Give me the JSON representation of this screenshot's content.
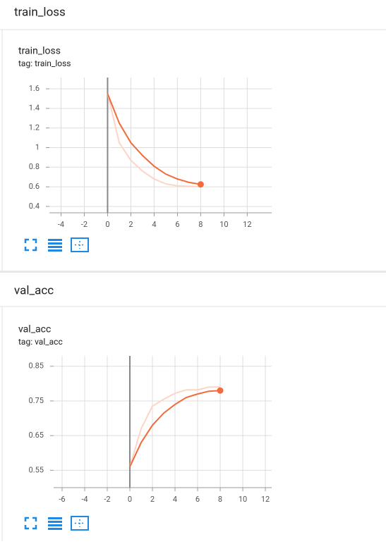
{
  "chart_data": [
    {
      "type": "line",
      "section": "train_loss",
      "title": "train_loss",
      "subtitle": "tag: train_loss",
      "x": [
        0,
        1,
        2,
        3,
        4,
        5,
        6,
        7,
        8
      ],
      "series": [
        {
          "color": "#fdd5c6",
          "values": [
            1.55,
            1.05,
            0.87,
            0.76,
            0.68,
            0.63,
            0.61,
            0.605,
            0.6
          ]
        },
        {
          "color": "#f26b3a",
          "values": [
            1.55,
            1.25,
            1.05,
            0.92,
            0.81,
            0.73,
            0.68,
            0.645,
            0.625
          ]
        }
      ],
      "xlim": [
        -5,
        14.1
      ],
      "xticks": [
        -4,
        -2,
        0,
        2,
        4,
        6,
        8,
        10,
        12
      ],
      "ylim": [
        0.335,
        1.715
      ],
      "yticks": [
        0.4,
        0.6,
        0.8,
        1,
        1.2,
        1.4,
        1.6
      ],
      "grid": true
    },
    {
      "type": "line",
      "section": "val_acc",
      "title": "val_acc",
      "subtitle": "tag: val_acc",
      "x": [
        0,
        1,
        2,
        3,
        4,
        5,
        6,
        7,
        8
      ],
      "series": [
        {
          "color": "#fdd5c6",
          "values": [
            0.56,
            0.67,
            0.735,
            0.755,
            0.772,
            0.782,
            0.782,
            0.79,
            0.79
          ]
        },
        {
          "color": "#f26b3a",
          "values": [
            0.56,
            0.63,
            0.68,
            0.715,
            0.74,
            0.76,
            0.77,
            0.778,
            0.78
          ]
        }
      ],
      "xlim": [
        -6.75,
        12.56
      ],
      "xticks": [
        -6,
        -4,
        -2,
        0,
        2,
        4,
        6,
        8,
        10,
        12
      ],
      "ylim": [
        0.5,
        0.88
      ],
      "yticks": [
        0.55,
        0.65,
        0.75,
        0.85
      ],
      "grid": true
    }
  ]
}
